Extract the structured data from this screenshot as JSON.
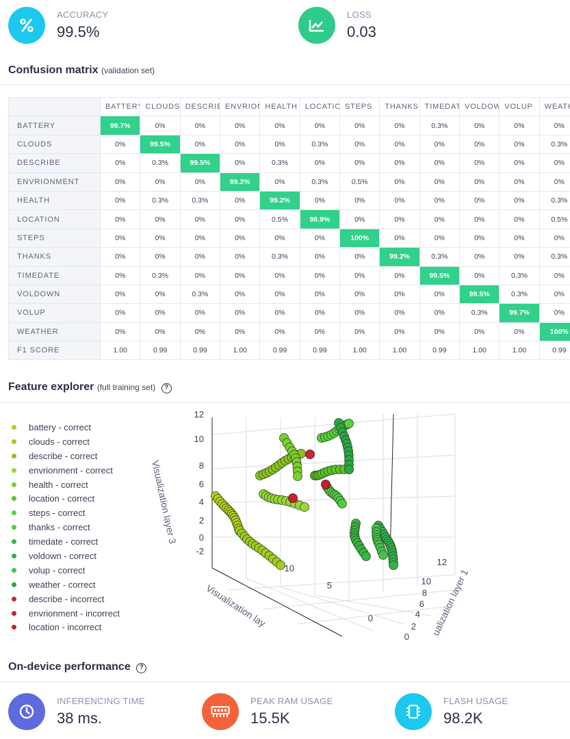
{
  "metrics": {
    "accuracy": {
      "label": "ACCURACY",
      "value": "99.5%",
      "icon": "percent-icon",
      "color": "#1cc8ee"
    },
    "loss": {
      "label": "LOSS",
      "value": "0.03",
      "icon": "chart-line-icon",
      "color": "#2ecb8b"
    }
  },
  "confusion": {
    "title": "Confusion matrix",
    "subtitle": "(validation set)",
    "columns": [
      "BATTERY",
      "CLOUDS",
      "DESCRIBE",
      "ENVRIONMENT",
      "HEALTH",
      "LOCATION",
      "STEPS",
      "THANKS",
      "TIMEDATE",
      "VOLDOWN",
      "VOLUP",
      "WEATHER"
    ],
    "rows": [
      {
        "label": "BATTERY",
        "values": [
          "99.7%",
          "0%",
          "0%",
          "0%",
          "0%",
          "0%",
          "0%",
          "0%",
          "0.3%",
          "0%",
          "0%",
          "0%"
        ]
      },
      {
        "label": "CLOUDS",
        "values": [
          "0%",
          "99.5%",
          "0%",
          "0%",
          "0%",
          "0.3%",
          "0%",
          "0%",
          "0%",
          "0%",
          "0%",
          "0.3%"
        ]
      },
      {
        "label": "DESCRIBE",
        "values": [
          "0%",
          "0.3%",
          "99.5%",
          "0%",
          "0.3%",
          "0%",
          "0%",
          "0%",
          "0%",
          "0%",
          "0%",
          "0%"
        ]
      },
      {
        "label": "ENVRIONMENT",
        "values": [
          "0%",
          "0%",
          "0%",
          "99.2%",
          "0%",
          "0.3%",
          "0.5%",
          "0%",
          "0%",
          "0%",
          "0%",
          "0%"
        ]
      },
      {
        "label": "HEALTH",
        "values": [
          "0%",
          "0.3%",
          "0.3%",
          "0%",
          "99.2%",
          "0%",
          "0%",
          "0%",
          "0%",
          "0%",
          "0%",
          "0.3%"
        ]
      },
      {
        "label": "LOCATION",
        "values": [
          "0%",
          "0%",
          "0%",
          "0%",
          "0.5%",
          "98.9%",
          "0%",
          "0%",
          "0%",
          "0%",
          "0%",
          "0.5%"
        ]
      },
      {
        "label": "STEPS",
        "values": [
          "0%",
          "0%",
          "0%",
          "0%",
          "0%",
          "0%",
          "100%",
          "0%",
          "0%",
          "0%",
          "0%",
          "0%"
        ]
      },
      {
        "label": "THANKS",
        "values": [
          "0%",
          "0%",
          "0%",
          "0%",
          "0.3%",
          "0%",
          "0%",
          "99.2%",
          "0.3%",
          "0%",
          "0%",
          "0.3%"
        ]
      },
      {
        "label": "TIMEDATE",
        "values": [
          "0%",
          "0.3%",
          "0%",
          "0%",
          "0%",
          "0%",
          "0%",
          "0%",
          "99.5%",
          "0%",
          "0.3%",
          "0%"
        ]
      },
      {
        "label": "VOLDOWN",
        "values": [
          "0%",
          "0%",
          "0.3%",
          "0%",
          "0%",
          "0%",
          "0%",
          "0%",
          "0%",
          "99.5%",
          "0.3%",
          "0%"
        ]
      },
      {
        "label": "VOLUP",
        "values": [
          "0%",
          "0%",
          "0%",
          "0%",
          "0%",
          "0%",
          "0%",
          "0%",
          "0%",
          "0.3%",
          "99.7%",
          "0%"
        ]
      },
      {
        "label": "WEATHER",
        "values": [
          "0%",
          "0%",
          "0%",
          "0%",
          "0%",
          "0%",
          "0%",
          "0%",
          "0%",
          "0%",
          "0%",
          "100%"
        ]
      }
    ],
    "f1": {
      "label": "F1 SCORE",
      "values": [
        "1.00",
        "0.99",
        "0.99",
        "1.00",
        "0.99",
        "0.99",
        "1.00",
        "1.00",
        "0.99",
        "1.00",
        "1.00",
        "0.99"
      ]
    }
  },
  "features": {
    "title": "Feature explorer",
    "subtitle": "(full training set)",
    "help": "?",
    "legend": [
      {
        "label": "battery - correct",
        "color": "#b5d01c"
      },
      {
        "label": "clouds - correct",
        "color": "#a3cc1e"
      },
      {
        "label": "describe - correct",
        "color": "#8cc220"
      },
      {
        "label": "envrionment - correct",
        "color": "#9bd63a"
      },
      {
        "label": "health - correct",
        "color": "#7ccf2e"
      },
      {
        "label": "location - correct",
        "color": "#5cc22a"
      },
      {
        "label": "steps - correct",
        "color": "#55d23a"
      },
      {
        "label": "thanks - correct",
        "color": "#4fcd45"
      },
      {
        "label": "timedate - correct",
        "color": "#36b644"
      },
      {
        "label": "voldown - correct",
        "color": "#2fb14d"
      },
      {
        "label": "volup - correct",
        "color": "#46c24f"
      },
      {
        "label": "weather - correct",
        "color": "#28a646"
      },
      {
        "label": "describe - incorrect",
        "color": "#c4283a"
      },
      {
        "label": "envrionment - incorrect",
        "color": "#c72232"
      },
      {
        "label": "location - incorrect",
        "color": "#c11f2f"
      }
    ]
  },
  "chart_data": {
    "type": "scatter",
    "title": "",
    "axes": {
      "z": {
        "label": "Visualization layer 3",
        "ticks": [
          "-2",
          "0",
          "2",
          "4",
          "6",
          "8",
          "10",
          "12"
        ]
      },
      "y": {
        "label": "Visualization lay",
        "ticks": [
          "0",
          "5",
          "10"
        ]
      },
      "x": {
        "label": "ualization layer 1",
        "ticks": [
          "0",
          "2",
          "4",
          "6",
          "8",
          "10",
          "12"
        ]
      }
    },
    "grid": true,
    "legend_position": "left"
  },
  "performance": {
    "title": "On-device performance",
    "help": "?",
    "items": [
      {
        "label": "INFERENCING TIME",
        "value": "38 ms.",
        "icon": "clock-icon",
        "color": "#5d6bdc"
      },
      {
        "label": "PEAK RAM USAGE",
        "value": "15.5K",
        "icon": "memory-icon",
        "color": "#f4623a"
      },
      {
        "label": "FLASH USAGE",
        "value": "98.2K",
        "icon": "chip-icon",
        "color": "#1cc8ee"
      }
    ]
  }
}
